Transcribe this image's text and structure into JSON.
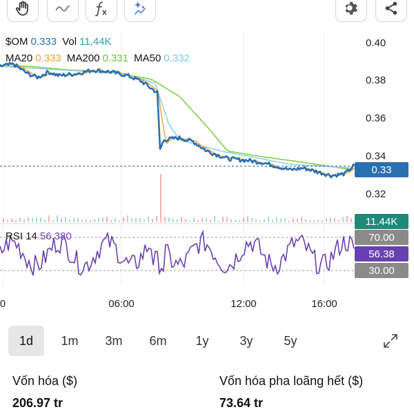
{
  "toolbar": {
    "left_icons": [
      "hand-icon",
      "wave-icon",
      "function-icon",
      "ai-sparkle-icon"
    ],
    "right_icons": [
      "gear-icon",
      "share-icon"
    ]
  },
  "legend": {
    "symbol": "$OM",
    "price": "0.333",
    "vol_label": "Vol",
    "vol_value": "11,44K",
    "ma20_label": "MA20",
    "ma20_value": "0.333",
    "ma200_label": "MA200",
    "ma200_value": "0.331",
    "ma50_label": "MA50",
    "ma50_value": "0.332",
    "rsi_label": "RSI 14",
    "rsi_value": "56.380"
  },
  "colors": {
    "price": "#2a6fb0",
    "ma20": "#f0a030",
    "ma200": "#7ed04a",
    "ma50": "#8ed0ec",
    "rsi": "#6a40b0",
    "vol_badge": "#1f8a78",
    "price_badge": "#2a6fb0",
    "grey_badge": "#8a8a8a"
  },
  "axis": {
    "y_ticks": [
      "0.40",
      "0.38",
      "0.36",
      "0.34",
      "0.32"
    ],
    "x_ticks": [
      "0",
      "06:00",
      "12:00",
      "16:00"
    ]
  },
  "badges": {
    "price": "0.33",
    "volume": "11.44K",
    "rsi_upper": "70.00",
    "rsi_value": "56.38",
    "rsi_lower": "30.00"
  },
  "ranges": {
    "items": [
      "1d",
      "1m",
      "3m",
      "6m",
      "1y",
      "3y",
      "5y"
    ],
    "selected": "1d"
  },
  "stats": {
    "market_cap_label": "Vốn hóa ($)",
    "market_cap_value": "206.97 tr",
    "diluted_cap_label": "Vốn hóa pha loãng hết ($)",
    "diluted_cap_value": "73.64 tr"
  },
  "chart_data": {
    "type": "line",
    "y_range": [
      0.315,
      0.405
    ],
    "x_ticks": [
      "0",
      "06:00",
      "12:00",
      "16:00"
    ],
    "price_keypoints": [
      [
        0,
        0.386
      ],
      [
        20,
        0.387
      ],
      [
        40,
        0.382
      ],
      [
        55,
        0.38
      ],
      [
        70,
        0.383
      ],
      [
        85,
        0.381
      ],
      [
        110,
        0.382
      ],
      [
        135,
        0.384
      ],
      [
        160,
        0.383
      ],
      [
        185,
        0.381
      ],
      [
        205,
        0.378
      ],
      [
        220,
        0.374
      ],
      [
        228,
        0.372
      ],
      [
        232,
        0.342
      ],
      [
        238,
        0.347
      ],
      [
        260,
        0.348
      ],
      [
        280,
        0.346
      ],
      [
        300,
        0.341
      ],
      [
        330,
        0.337
      ],
      [
        360,
        0.336
      ],
      [
        380,
        0.335
      ],
      [
        400,
        0.333
      ],
      [
        420,
        0.331
      ],
      [
        440,
        0.332
      ],
      [
        460,
        0.33
      ],
      [
        480,
        0.328
      ],
      [
        500,
        0.329
      ],
      [
        512,
        0.333
      ]
    ],
    "ma200_keypoints": [
      [
        0,
        0.386
      ],
      [
        40,
        0.386
      ],
      [
        100,
        0.384
      ],
      [
        160,
        0.383
      ],
      [
        220,
        0.379
      ],
      [
        260,
        0.37
      ],
      [
        300,
        0.354
      ],
      [
        330,
        0.341
      ],
      [
        380,
        0.338
      ],
      [
        440,
        0.335
      ],
      [
        512,
        0.331
      ]
    ],
    "ma50_keypoints": [
      [
        0,
        0.386
      ],
      [
        180,
        0.382
      ],
      [
        225,
        0.377
      ],
      [
        232,
        0.369
      ],
      [
        245,
        0.355
      ],
      [
        260,
        0.347
      ],
      [
        320,
        0.341
      ],
      [
        420,
        0.334
      ],
      [
        512,
        0.332
      ]
    ],
    "rsi_levels": [
      70,
      30
    ],
    "rsi_last": 56.38
  }
}
